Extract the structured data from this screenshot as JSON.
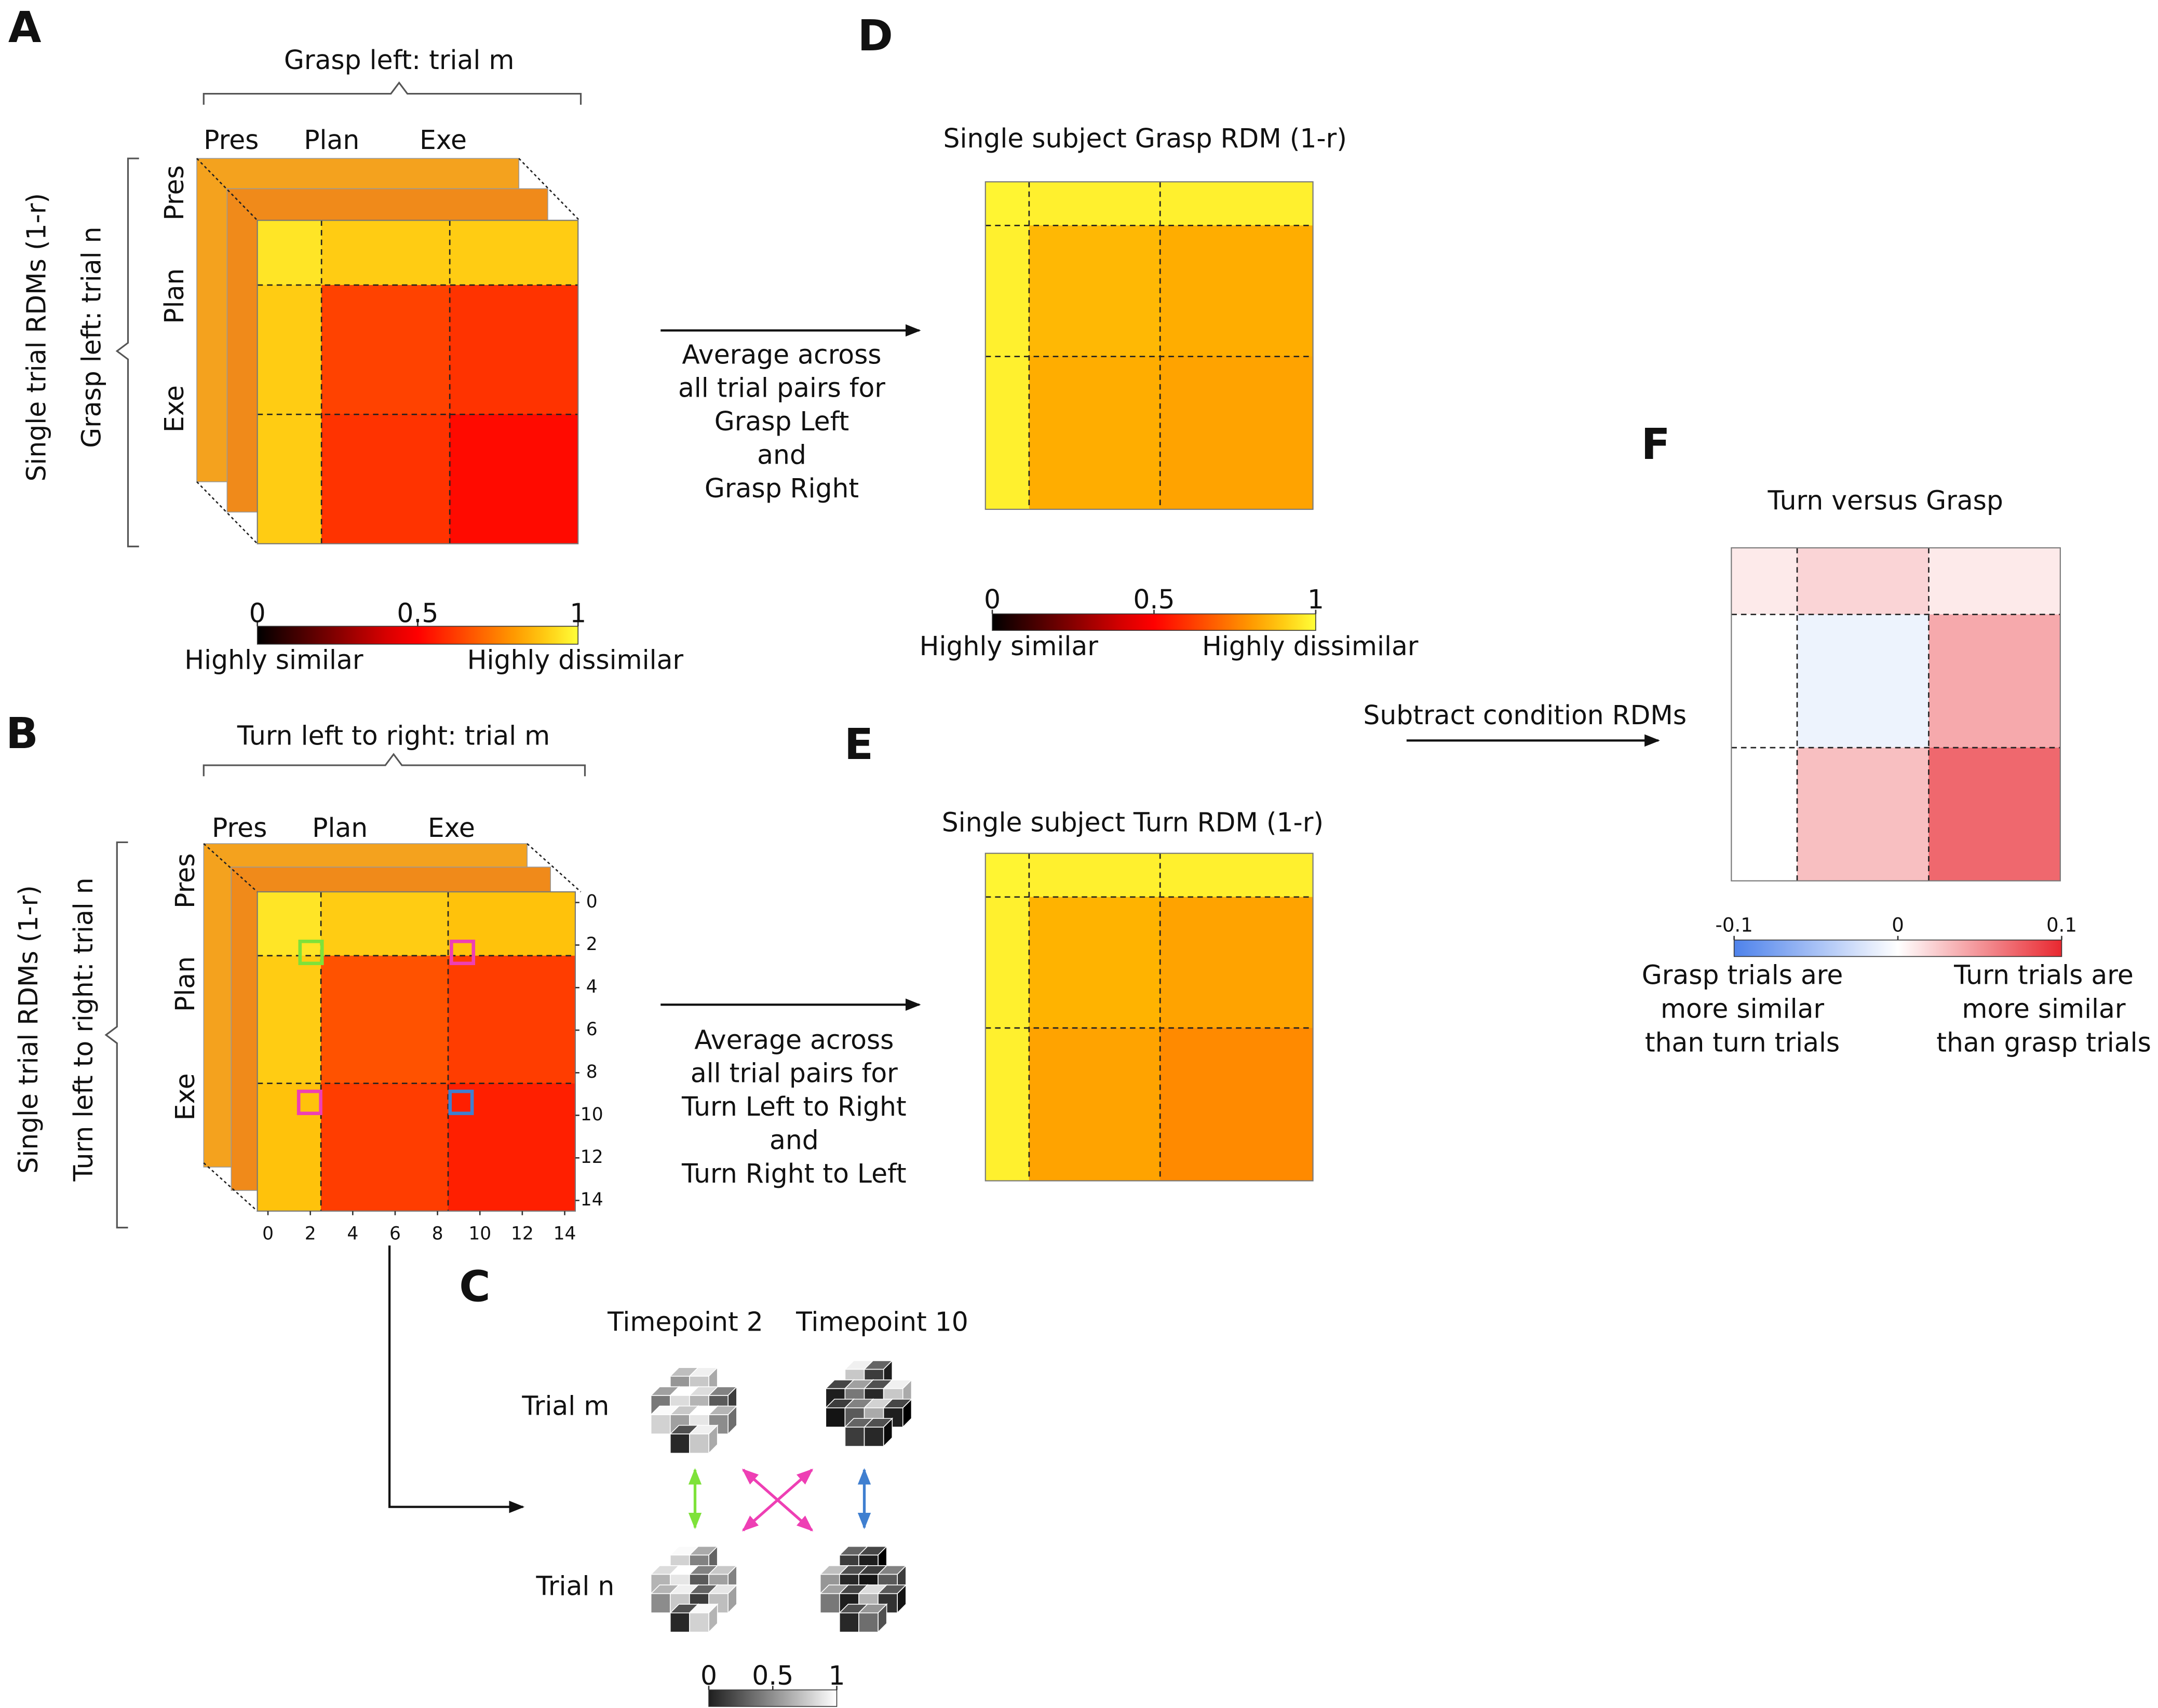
{
  "letters": [
    "A",
    "B",
    "C",
    "D",
    "E",
    "F"
  ],
  "panel_a": {
    "title": "Grasp left: trial m",
    "outer_label": "Single trial RDMs (1-r)",
    "row_label": "Grasp left: trial n",
    "phases": [
      "Pres",
      "Plan",
      "Exe"
    ],
    "matrix": [
      [
        0.95,
        0.9,
        0.9
      ],
      [
        0.9,
        0.63,
        0.6
      ],
      [
        0.9,
        0.6,
        0.52
      ]
    ]
  },
  "colorbar_a": {
    "ticks": [
      0,
      0.5,
      1
    ],
    "low": "Highly similar",
    "high": "Highly dissimilar"
  },
  "panel_b": {
    "title": "Turn left to right: trial m",
    "outer_label": "Single trial RDMs (1-r)",
    "row_label": "Turn left to right: trial n",
    "phases": [
      "Pres",
      "Plan",
      "Exe"
    ],
    "ticks": [
      0,
      2,
      4,
      6,
      8,
      10,
      12,
      14
    ],
    "matrix": [
      [
        0.95,
        0.9,
        0.88
      ],
      [
        0.9,
        0.66,
        0.62
      ],
      [
        0.88,
        0.62,
        0.56
      ]
    ]
  },
  "arrow_d": [
    "Average across",
    "all trial pairs for",
    "Grasp Left",
    "and",
    "Grasp Right"
  ],
  "panel_d": {
    "title": "Single subject Grasp RDM (1-r)",
    "matrix": [
      [
        0.98,
        0.97,
        0.97
      ],
      [
        0.97,
        0.86,
        0.84
      ],
      [
        0.97,
        0.84,
        0.82
      ]
    ]
  },
  "colorbar_d": {
    "ticks": [
      0,
      0.5,
      1
    ],
    "low": "Highly similar",
    "high": "Highly dissimilar"
  },
  "arrow_e": [
    "Average across",
    "all trial pairs for",
    "Turn Left to Right",
    "and",
    "Turn Right to Left"
  ],
  "panel_e": {
    "title": "Single subject Turn RDM (1-r)",
    "matrix": [
      [
        0.98,
        0.97,
        0.97
      ],
      [
        0.97,
        0.85,
        0.82
      ],
      [
        0.97,
        0.82,
        0.77
      ]
    ]
  },
  "arrow_f": "Subtract condition RDMs",
  "panel_f": {
    "title": "Turn versus Grasp",
    "matrix": [
      [
        0.01,
        0.02,
        0.01
      ],
      [
        0.0,
        -0.01,
        0.04
      ],
      [
        0.0,
        0.03,
        0.07
      ]
    ]
  },
  "colorbar_f": {
    "ticks": [
      -0.1,
      0,
      0.1
    ],
    "low": [
      "Grasp trials are",
      "more similar",
      "than turn trials"
    ],
    "high": [
      "Turn trials are",
      "more similar",
      "than grasp trials"
    ]
  },
  "panel_c": {
    "timepoints": [
      "Timepoint 2",
      "Timepoint 10"
    ],
    "trials": [
      "Trial m",
      "Trial n"
    ],
    "ticks": [
      0,
      0.5,
      1
    ]
  }
}
